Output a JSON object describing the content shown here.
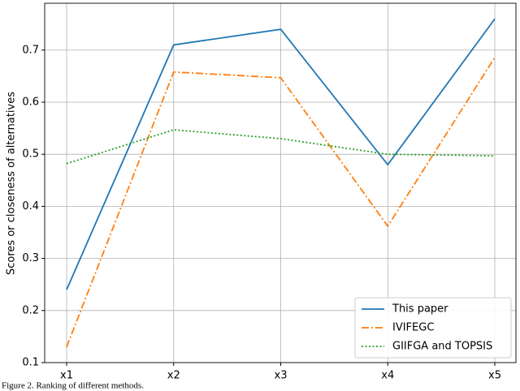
{
  "chart_data": {
    "type": "line",
    "ylabel": "Scores or closeness of alternatives",
    "categories": [
      "x1",
      "x2",
      "x3",
      "x4",
      "x5"
    ],
    "series": [
      {
        "name": "This paper",
        "color": "#1f77b4",
        "style": "solid",
        "values": [
          0.24,
          0.71,
          0.74,
          0.48,
          0.76
        ]
      },
      {
        "name": "IVIFEGC",
        "color": "#ff7f0e",
        "style": "dashdot",
        "values": [
          0.13,
          0.658,
          0.647,
          0.362,
          0.686
        ]
      },
      {
        "name": "GIIFGA and TOPSIS",
        "color": "#2ca02c",
        "style": "dotted",
        "values": [
          0.482,
          0.547,
          0.53,
          0.5,
          0.497
        ]
      }
    ],
    "ylim": [
      0.1,
      0.79
    ],
    "yticks": [
      0.1,
      0.2,
      0.3,
      0.4,
      0.5,
      0.6,
      0.7
    ],
    "grid": true,
    "legend": "lower right",
    "caption": "Figure 2. Ranking of different methods."
  }
}
